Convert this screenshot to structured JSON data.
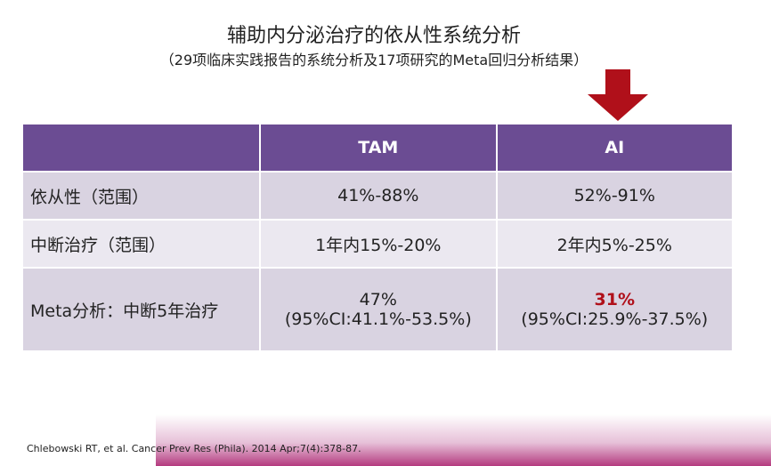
{
  "header": {
    "title": "辅助内分泌治疗的依从性系统分析",
    "subtitle": "（29项临床实践报告的系统分析及17项研究的Meta回归分析结果）"
  },
  "table": {
    "columns": [
      "",
      "TAM",
      "AI"
    ],
    "rows": [
      [
        [
          "依从性（范围）"
        ],
        [
          "41%-88%"
        ],
        [
          "52%-91%"
        ]
      ],
      [
        [
          "中断治疗（范围）"
        ],
        [
          "1年内15%-20%"
        ],
        [
          "2年内5%-25%"
        ]
      ],
      [
        [
          "Meta分析：中断5年治疗"
        ],
        [
          "47%",
          "(95%CI:41.1%-53.5%)"
        ],
        [
          "31%",
          "(95%CI:25.9%-37.5%)"
        ]
      ]
    ]
  },
  "footer": {
    "citation": "Chlebowski RT, et al. Cancer Prev Res (Phila). 2014 Apr;7(4):378-87."
  }
}
